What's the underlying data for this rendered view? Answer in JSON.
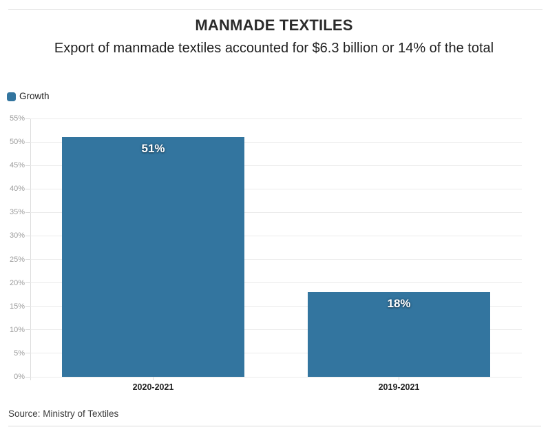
{
  "chart_data": {
    "type": "bar",
    "title": "MANMADE TEXTILES",
    "subtitle": "Export of manmade textiles accounted for $6.3 billion or 14% of the total",
    "categories": [
      "2020-2021",
      "2019-2021"
    ],
    "series": [
      {
        "name": "Growth",
        "values": [
          51,
          18
        ]
      }
    ],
    "value_labels": [
      "51%",
      "18%"
    ],
    "xlabel": "",
    "ylabel": "",
    "ylim": [
      0,
      55
    ],
    "ytick_step": 5,
    "ytick_labels": [
      "0%",
      "5%",
      "10%",
      "15%",
      "20%",
      "25%",
      "30%",
      "35%",
      "40%",
      "45%",
      "50%",
      "55%"
    ],
    "grid": true,
    "legend_position": "top-left",
    "bar_width_ratio": 0.743,
    "colors": {
      "bar": "#33759f",
      "grid": "#ebebeb",
      "axis": "#dcdcdc",
      "tick": "#d9d9d9"
    },
    "source": "Source: Ministry of Textiles"
  }
}
